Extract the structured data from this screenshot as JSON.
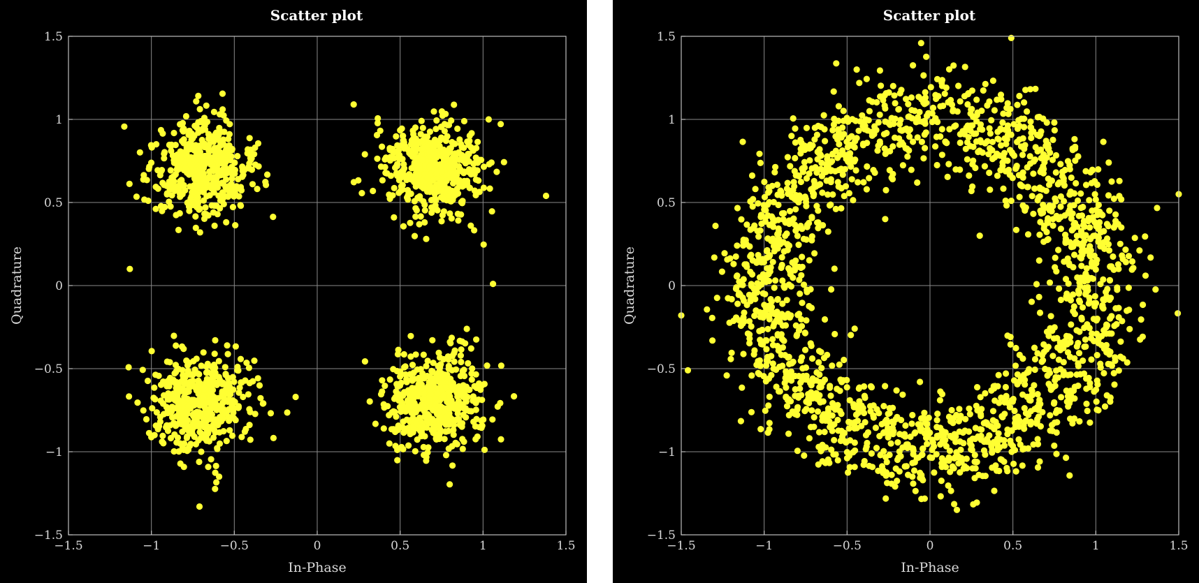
{
  "chart_data": [
    {
      "type": "scatter",
      "title": "Scatter plot",
      "xlabel": "In-Phase",
      "ylabel": "Quadrature",
      "xlim": [
        -1.5,
        1.5
      ],
      "ylim": [
        -1.5,
        1.5
      ],
      "xticks": [
        "−1.5",
        "−1",
        "−0.5",
        "0",
        "0.5",
        "1",
        "1.5"
      ],
      "yticks": [
        "1.5",
        "1",
        "0.5",
        "0",
        "−0.5",
        "−1",
        "−1.5"
      ],
      "grid": true,
      "marker_color": "#ffff33",
      "background": "#000000",
      "clusters": [
        {
          "center": [
            -0.7,
            0.7
          ],
          "std": 0.15,
          "count": 500
        },
        {
          "center": [
            0.7,
            0.7
          ],
          "std": 0.15,
          "count": 500
        },
        {
          "center": [
            -0.7,
            -0.7
          ],
          "std": 0.15,
          "count": 500
        },
        {
          "center": [
            0.7,
            -0.7
          ],
          "std": 0.15,
          "count": 500
        }
      ],
      "outliers": [
        [
          -1.13,
          0.1
        ],
        [
          1.38,
          0.54
        ],
        [
          1.06,
          0.01
        ],
        [
          0.22,
          1.09
        ],
        [
          -0.13,
          -0.67
        ],
        [
          -0.71,
          -1.33
        ]
      ]
    },
    {
      "type": "scatter",
      "title": "Scatter plot",
      "xlabel": "In-Phase",
      "ylabel": "Quadrature",
      "xlim": [
        -1.5,
        1.5
      ],
      "ylim": [
        -1.5,
        1.5
      ],
      "xticks": [
        "−1.5",
        "−1",
        "−0.5",
        "0",
        "0.5",
        "1",
        "1.5"
      ],
      "yticks": [
        "1.5",
        "1",
        "0.5",
        "0",
        "−0.5",
        "−1",
        "−1.5"
      ],
      "grid": true,
      "marker_color": "#ffff33",
      "background": "#000000",
      "ring": {
        "center": [
          0,
          0
        ],
        "radius": 1.0,
        "radial_std": 0.15,
        "count": 2000
      },
      "outliers": [
        [
          -1.5,
          -0.18
        ],
        [
          1.5,
          0.55
        ],
        [
          0.49,
          1.49
        ],
        [
          -1.46,
          -0.51
        ],
        [
          0.3,
          0.3
        ],
        [
          -0.27,
          0.4
        ]
      ]
    }
  ]
}
